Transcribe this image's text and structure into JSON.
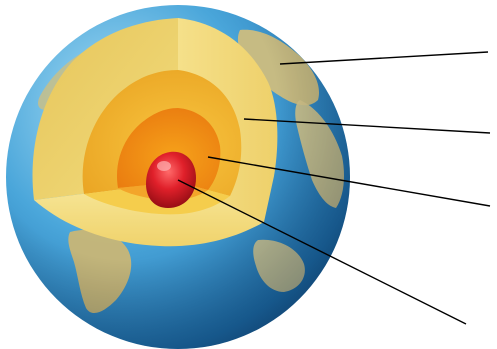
{
  "figure": {
    "subject": "earth-interior-cutaway",
    "layers": [
      {
        "id": "crust",
        "color": "#f3da7a"
      },
      {
        "id": "mantle",
        "color": "#f7b92a"
      },
      {
        "id": "outer-core",
        "color": "#f08a12"
      },
      {
        "id": "inner-core",
        "color": "#d8141d"
      }
    ],
    "ocean_color": "#2f8fcf",
    "land_color": "#c9b978",
    "leader_line_color": "#000000",
    "leader_labels": [
      "",
      "",
      "",
      ""
    ]
  }
}
